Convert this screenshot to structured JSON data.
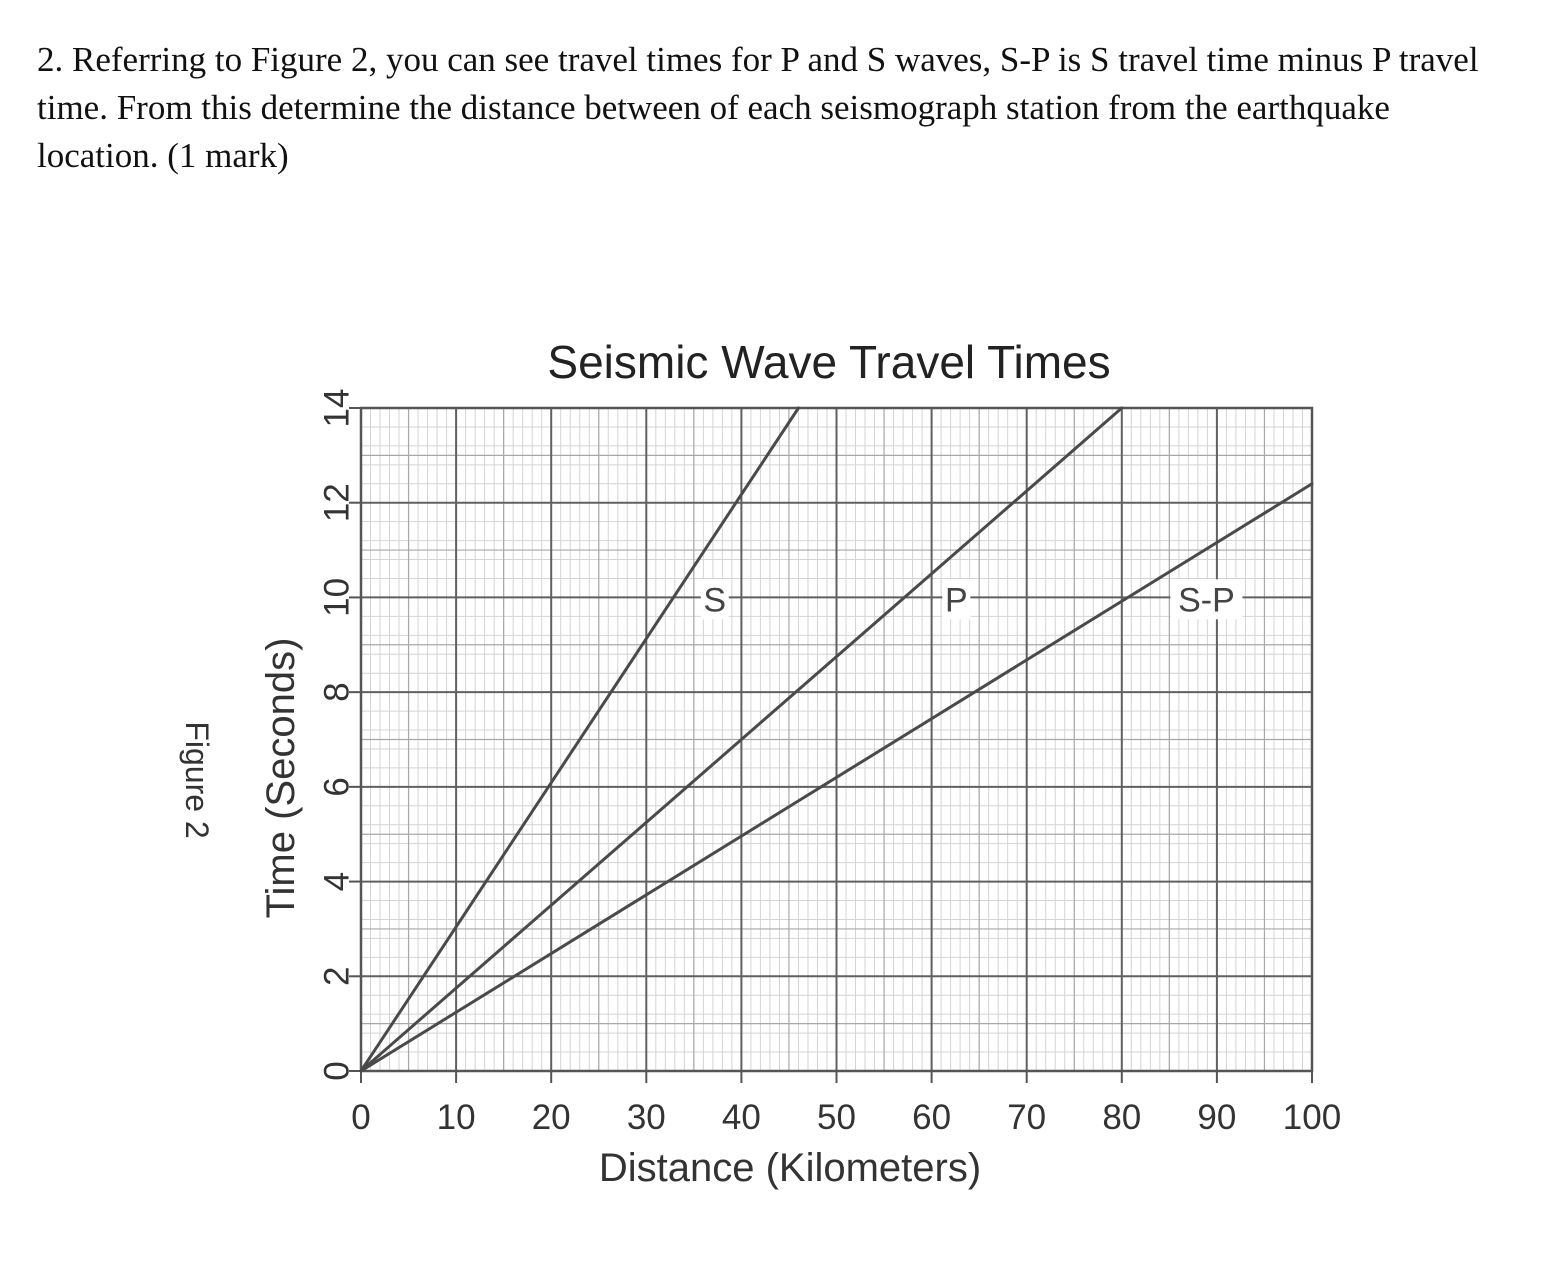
{
  "question": {
    "text": "2. Referring to Figure 2, you can see travel times for P and S waves, S-P is S travel time minus P travel time. From this determine the distance between of each seismograph station from the earthquake location. (1 mark)"
  },
  "figure": {
    "caption": "Figure 2"
  },
  "chart_data": {
    "type": "line",
    "title": "Seismic Wave Travel Times",
    "xlabel": "Distance (Kilometers)",
    "ylabel": "Time (Seconds)",
    "xlim": [
      0,
      100
    ],
    "ylim": [
      0,
      14
    ],
    "xticks": [
      0,
      10,
      20,
      30,
      40,
      50,
      60,
      70,
      80,
      90,
      100
    ],
    "yticks": [
      0,
      2,
      4,
      6,
      8,
      10,
      12,
      14
    ],
    "grid": true,
    "series": [
      {
        "name": "S",
        "points": [
          [
            0,
            0
          ],
          [
            46,
            14
          ]
        ],
        "label_at": [
          37.2,
          9.96
        ]
      },
      {
        "name": "P",
        "points": [
          [
            0,
            0
          ],
          [
            80,
            14
          ]
        ],
        "label_at": [
          62.6,
          9.96
        ]
      },
      {
        "name": "S-P",
        "points": [
          [
            0,
            0
          ],
          [
            100,
            12.4
          ]
        ],
        "label_at": [
          88.9,
          9.96
        ]
      }
    ],
    "colors": {
      "line": "#4a4a4a",
      "grid_major": "#606060",
      "grid_minor": "#d4d4d4"
    }
  }
}
